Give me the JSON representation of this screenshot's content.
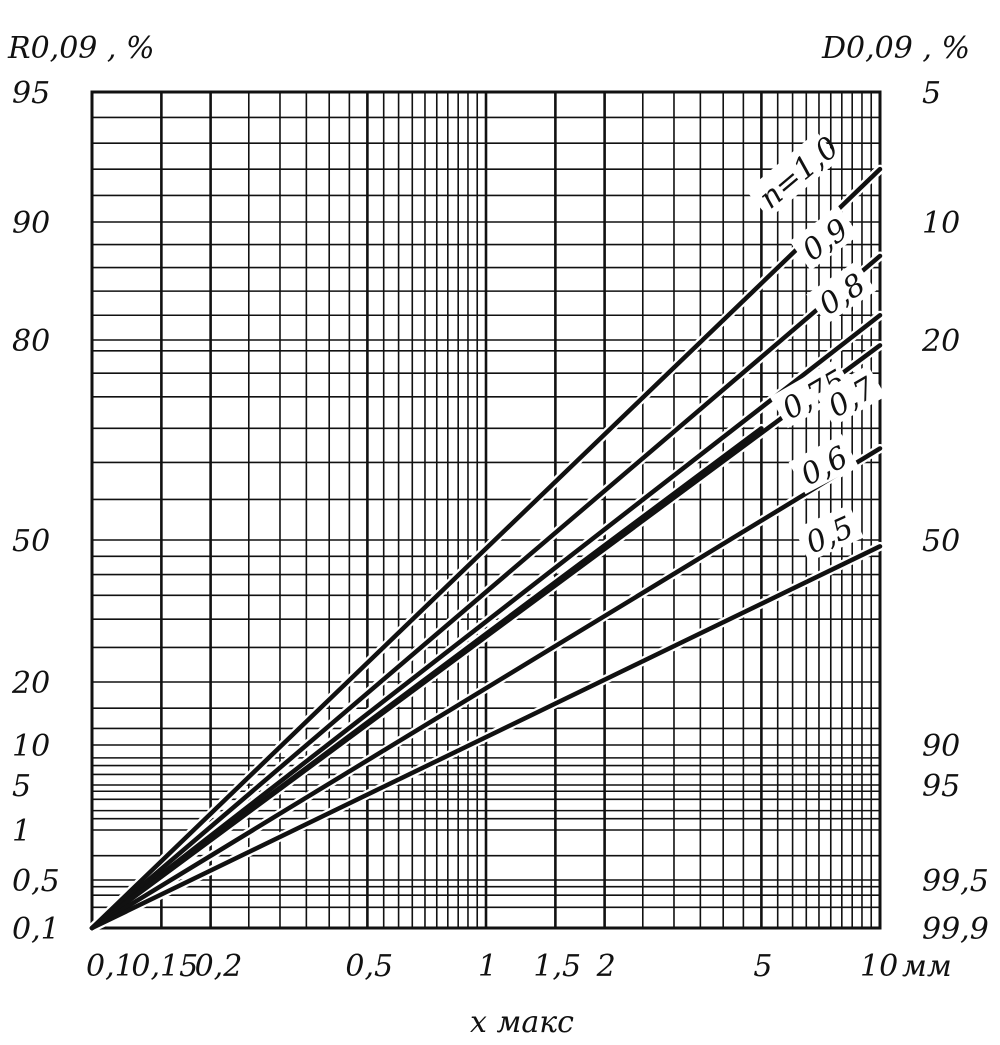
{
  "chart_data": {
    "type": "line",
    "title": "",
    "ylabel_left": "R0,09 , %",
    "ylabel_right": "D0,09 , %",
    "xlabel": "x макс",
    "x_unit": "мм",
    "x_scale": "log",
    "xlim": [
      0.1,
      10
    ],
    "y_scale": "nonlinear",
    "grid": true,
    "left_ticks": [
      "95",
      "90",
      "80",
      "50",
      "20",
      "10",
      "5",
      "1",
      "0,5",
      "0,1"
    ],
    "left_tick_values": [
      95,
      90,
      80,
      50,
      20,
      10,
      5,
      1,
      0.5,
      0.1
    ],
    "right_ticks": [
      "5",
      "10",
      "20",
      "50",
      "90",
      "95",
      "99,5",
      "99,9"
    ],
    "right_tick_values": [
      5,
      10,
      20,
      50,
      90,
      95,
      99.5,
      99.9
    ],
    "x_ticks": [
      "0,1",
      "0,15",
      "0,2",
      "0,5",
      "1",
      "1,5",
      "2",
      "5",
      "10"
    ],
    "x_tick_values": [
      0.1,
      0.15,
      0.2,
      0.5,
      1,
      1.5,
      2,
      5,
      10
    ],
    "series": [
      {
        "name": "n=1,0",
        "x": [
          0.1,
          10
        ],
        "y": [
          0.1,
          92
        ]
      },
      {
        "name": "0,9",
        "x": [
          0.1,
          10
        ],
        "y": [
          0.1,
          87
        ]
      },
      {
        "name": "0,8",
        "x": [
          0.1,
          10
        ],
        "y": [
          0.1,
          82
        ]
      },
      {
        "name": "0,75",
        "x": [
          0.1,
          5
        ],
        "y": [
          0.1,
          65
        ]
      },
      {
        "name": "0,7",
        "x": [
          0.1,
          10
        ],
        "y": [
          0.1,
          79
        ]
      },
      {
        "name": "0,6",
        "x": [
          0.1,
          10
        ],
        "y": [
          0.1,
          62
        ]
      },
      {
        "name": "0,5",
        "x": [
          0.1,
          10
        ],
        "y": [
          0.1,
          48
        ]
      }
    ]
  }
}
